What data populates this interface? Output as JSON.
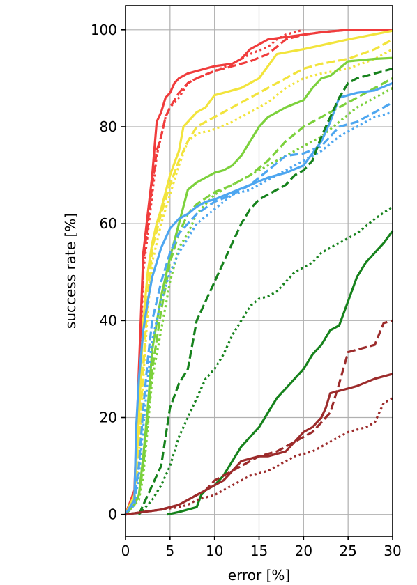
{
  "chart_data": {
    "type": "line",
    "title": "",
    "xlabel": "error [%]",
    "ylabel": "success rate [%]",
    "xlim": [
      0,
      30
    ],
    "ylim": [
      -4.5,
      105
    ],
    "xticks": [
      0,
      5,
      10,
      15,
      20,
      25,
      30
    ],
    "yticks": [
      0,
      20,
      40,
      60,
      80,
      100
    ],
    "grid": true,
    "series": [
      {
        "color": "#f03c3c",
        "dash": "solid",
        "x": [
          0,
          1,
          1.5,
          2,
          2.5,
          3,
          3.5,
          4,
          4.5,
          5,
          5.5,
          6,
          7,
          8,
          10,
          12,
          13,
          14,
          16,
          18,
          20,
          22,
          25,
          30
        ],
        "y": [
          0,
          5,
          30,
          54,
          62,
          70,
          81,
          83,
          86,
          87,
          89,
          90,
          91,
          91.5,
          92.5,
          93,
          94,
          96,
          98,
          98.5,
          99,
          99.5,
          100,
          100
        ]
      },
      {
        "color": "#f03c3c",
        "dash": "dashed",
        "x": [
          0,
          1,
          1.5,
          2,
          2.5,
          3,
          3.5,
          4,
          4.5,
          5,
          6,
          7,
          8,
          10,
          12,
          14,
          16,
          18,
          20,
          22,
          25,
          30
        ],
        "y": [
          0,
          4,
          28,
          52,
          60,
          68,
          75,
          78,
          82,
          84,
          87,
          89,
          90,
          91.5,
          92.5,
          93.5,
          95,
          98,
          99,
          99.5,
          100,
          100
        ]
      },
      {
        "color": "#f03c3c",
        "dash": "dotted",
        "x": [
          0,
          1,
          1.5,
          2,
          2.5,
          3,
          3.5,
          4,
          4.5,
          5,
          6,
          7,
          8,
          10,
          12,
          14,
          16,
          17,
          18,
          19,
          20
        ],
        "y": [
          0,
          3,
          25,
          50,
          58,
          66,
          74,
          78,
          82,
          84,
          86,
          89,
          90,
          91.5,
          93,
          95,
          96.5,
          98,
          99,
          99.5,
          100
        ]
      },
      {
        "color": "#f2e43c",
        "dash": "solid",
        "x": [
          0,
          1,
          1.5,
          2,
          2.5,
          3,
          3.5,
          4,
          5,
          6,
          6.5,
          7,
          8,
          9,
          10,
          11,
          12,
          13,
          15,
          17,
          20,
          25,
          30
        ],
        "y": [
          0,
          4,
          20,
          40,
          50,
          56,
          60,
          63,
          70,
          75,
          80,
          81,
          83,
          84,
          86.5,
          87,
          87.5,
          88,
          90,
          95,
          96,
          98,
          99.8
        ]
      },
      {
        "color": "#f2e43c",
        "dash": "dashed",
        "x": [
          0,
          1,
          1.5,
          2,
          2.5,
          3,
          4,
          5,
          6,
          7,
          8,
          10,
          12,
          14,
          16,
          18,
          20,
          22,
          25,
          28,
          30
        ],
        "y": [
          0,
          3,
          15,
          30,
          45,
          55,
          62,
          68,
          73,
          77,
          80,
          82,
          84,
          86,
          88,
          90,
          92,
          93,
          94,
          96,
          98
        ]
      },
      {
        "color": "#f2e43c",
        "dash": "dotted",
        "x": [
          0,
          1,
          1.5,
          2,
          2.5,
          3,
          4,
          5,
          6,
          7,
          8,
          10,
          12,
          14,
          16,
          18,
          20,
          22,
          25,
          28,
          30
        ],
        "y": [
          0,
          3,
          12,
          28,
          42,
          52,
          60,
          66,
          72,
          77,
          78.5,
          79.5,
          81,
          83,
          85,
          88,
          90,
          91,
          92,
          94,
          96
        ]
      },
      {
        "color": "#7cd13c",
        "dash": "solid",
        "x": [
          0,
          1,
          1.5,
          2,
          2.5,
          3,
          4,
          5,
          6,
          7,
          8,
          9,
          10,
          11,
          12,
          13,
          14,
          15,
          16,
          18,
          20,
          21,
          22,
          23,
          25,
          28,
          30
        ],
        "y": [
          0,
          2,
          4,
          12,
          22,
          34,
          45,
          53,
          60,
          67,
          68.5,
          69.5,
          70.5,
          71,
          72,
          74,
          77,
          80,
          82,
          84,
          85.5,
          88,
          90,
          90.5,
          93.5,
          94,
          94.2
        ]
      },
      {
        "color": "#7cd13c",
        "dash": "dashed",
        "x": [
          0,
          1,
          1.5,
          2,
          2.5,
          3,
          4,
          5,
          6,
          7,
          8,
          10,
          12,
          14,
          16,
          18,
          20,
          22,
          24,
          26,
          28,
          30
        ],
        "y": [
          0,
          2,
          4,
          10,
          20,
          30,
          42,
          52,
          58,
          62,
          64,
          66.5,
          68,
          70,
          73,
          77,
          80,
          82,
          84,
          86,
          88,
          90
        ]
      },
      {
        "color": "#7cd13c",
        "dash": "dotted",
        "x": [
          0,
          1,
          1.5,
          2,
          2.5,
          3,
          4,
          5,
          6,
          7,
          8,
          10,
          12,
          14,
          16,
          18,
          20,
          22,
          24,
          26,
          28,
          30
        ],
        "y": [
          0,
          2,
          3,
          8,
          18,
          28,
          38,
          48,
          55,
          58,
          62,
          66,
          68,
          70,
          72,
          74,
          76,
          78,
          81,
          84,
          86,
          88
        ]
      },
      {
        "color": "#4da6f0",
        "dash": "solid",
        "x": [
          0,
          1,
          1.2,
          1.5,
          2,
          2.5,
          3,
          3.5,
          4,
          4.5,
          5,
          6,
          7,
          8,
          9,
          10,
          12,
          14,
          16,
          18,
          20,
          22,
          23,
          24,
          26,
          28,
          30
        ],
        "y": [
          0,
          3,
          18,
          28,
          38,
          44,
          49,
          52,
          55,
          57,
          59,
          61,
          62,
          63.5,
          64.5,
          65,
          66.5,
          68,
          69.5,
          70.5,
          72,
          77,
          81,
          86,
          87,
          87.5,
          89
        ]
      },
      {
        "color": "#4da6f0",
        "dash": "dashed",
        "x": [
          0,
          1,
          1.5,
          2,
          2.5,
          3,
          4,
          5,
          6,
          7,
          8,
          10,
          12,
          14,
          16,
          18,
          20,
          22,
          24,
          26,
          28,
          30
        ],
        "y": [
          0,
          3,
          10,
          22,
          32,
          40,
          48,
          54,
          58,
          60,
          62,
          64.5,
          66,
          68,
          71,
          74,
          74.5,
          76,
          80,
          81,
          83,
          85
        ]
      },
      {
        "color": "#4da6f0",
        "dash": "dotted",
        "x": [
          0,
          1,
          1.5,
          2,
          2.5,
          3,
          4,
          5,
          6,
          7,
          8,
          10,
          12,
          14,
          16,
          18,
          20,
          22,
          24,
          26,
          28,
          30
        ],
        "y": [
          0,
          2,
          8,
          18,
          28,
          36,
          44,
          50,
          54,
          57,
          60,
          63,
          66,
          67,
          69,
          71,
          73,
          75,
          78,
          80,
          82,
          83
        ]
      },
      {
        "color": "#16821c",
        "dash": "solid",
        "x": [
          4.7,
          6,
          7,
          8,
          8.5,
          9,
          10,
          11,
          12,
          13,
          14,
          15,
          16,
          17,
          18,
          19,
          20,
          21,
          22,
          23,
          24,
          25,
          26,
          27,
          28,
          29,
          30
        ],
        "y": [
          0,
          0.5,
          1,
          1.5,
          4,
          5,
          6,
          8,
          11,
          14,
          16,
          18,
          21,
          24,
          26,
          28,
          30,
          33,
          35,
          38,
          39,
          44,
          49,
          52,
          54,
          56,
          58.5
        ]
      },
      {
        "color": "#16821c",
        "dash": "dashed",
        "x": [
          1.5,
          2,
          3,
          4,
          5,
          6,
          7,
          8,
          9,
          10,
          11,
          12,
          13,
          14,
          15,
          16,
          17,
          18,
          19,
          20,
          21,
          22,
          23,
          24,
          25,
          26,
          28,
          30
        ],
        "y": [
          0,
          2,
          6,
          10,
          22,
          27,
          30,
          40,
          44,
          48,
          52,
          56,
          60,
          63,
          65,
          66,
          67,
          68,
          70,
          71,
          73,
          78,
          82,
          86,
          89,
          90,
          91,
          92
        ]
      },
      {
        "color": "#16821c",
        "dash": "dotted",
        "x": [
          1.5,
          2,
          3,
          4,
          5,
          6,
          7,
          8,
          9,
          10,
          11,
          12,
          13,
          14,
          15,
          16,
          17,
          18,
          19,
          20,
          21,
          22,
          23,
          24,
          25,
          26,
          28,
          30
        ],
        "y": [
          0,
          1,
          3,
          6,
          10,
          16,
          20,
          24,
          28,
          30,
          33,
          37,
          40,
          43,
          44.5,
          45,
          46,
          48,
          50,
          51,
          52,
          54,
          55,
          56,
          57,
          58,
          61,
          63.5
        ]
      },
      {
        "color": "#9c2b2b",
        "dash": "solid",
        "x": [
          0,
          2,
          4,
          6,
          7,
          8,
          9,
          10,
          11,
          12,
          13,
          14,
          15,
          16,
          17,
          18,
          19,
          20,
          21,
          22,
          22.5,
          23,
          24,
          25,
          26,
          28,
          30
        ],
        "y": [
          0,
          0.5,
          1,
          2,
          3,
          4,
          5,
          6,
          7,
          9,
          11,
          11.5,
          12,
          12,
          12.5,
          13,
          15,
          17,
          18,
          20,
          22,
          25,
          25.5,
          26,
          26.5,
          28,
          29
        ]
      },
      {
        "color": "#9c2b2b",
        "dash": "dashed",
        "x": [
          0,
          2,
          4,
          5,
          6,
          7,
          8,
          9,
          10,
          11,
          12,
          13,
          14,
          15,
          16,
          17,
          18,
          19,
          20,
          21,
          22,
          23,
          24,
          25,
          26,
          27,
          28,
          29,
          30
        ],
        "y": [
          0,
          0.5,
          1,
          1.5,
          2,
          3,
          4,
          5,
          7,
          8,
          9,
          10,
          11,
          12,
          12.5,
          13,
          14,
          15,
          16,
          17,
          19,
          21,
          27,
          33.5,
          34,
          34.5,
          35,
          39.5,
          40
        ]
      },
      {
        "color": "#9c2b2b",
        "dash": "dotted",
        "x": [
          0,
          2,
          4,
          6,
          7,
          8,
          9,
          10,
          11,
          12,
          13,
          14,
          15,
          16,
          17,
          18,
          19,
          20,
          21,
          22,
          23,
          24,
          25,
          26,
          27,
          28,
          29,
          30
        ],
        "y": [
          0,
          0.5,
          1,
          1.5,
          2,
          3,
          3.5,
          4,
          5,
          6,
          7,
          8,
          8.5,
          9,
          10,
          11,
          12,
          12.5,
          13,
          14,
          15,
          16,
          17,
          17.5,
          18,
          19,
          23,
          24
        ]
      }
    ]
  }
}
